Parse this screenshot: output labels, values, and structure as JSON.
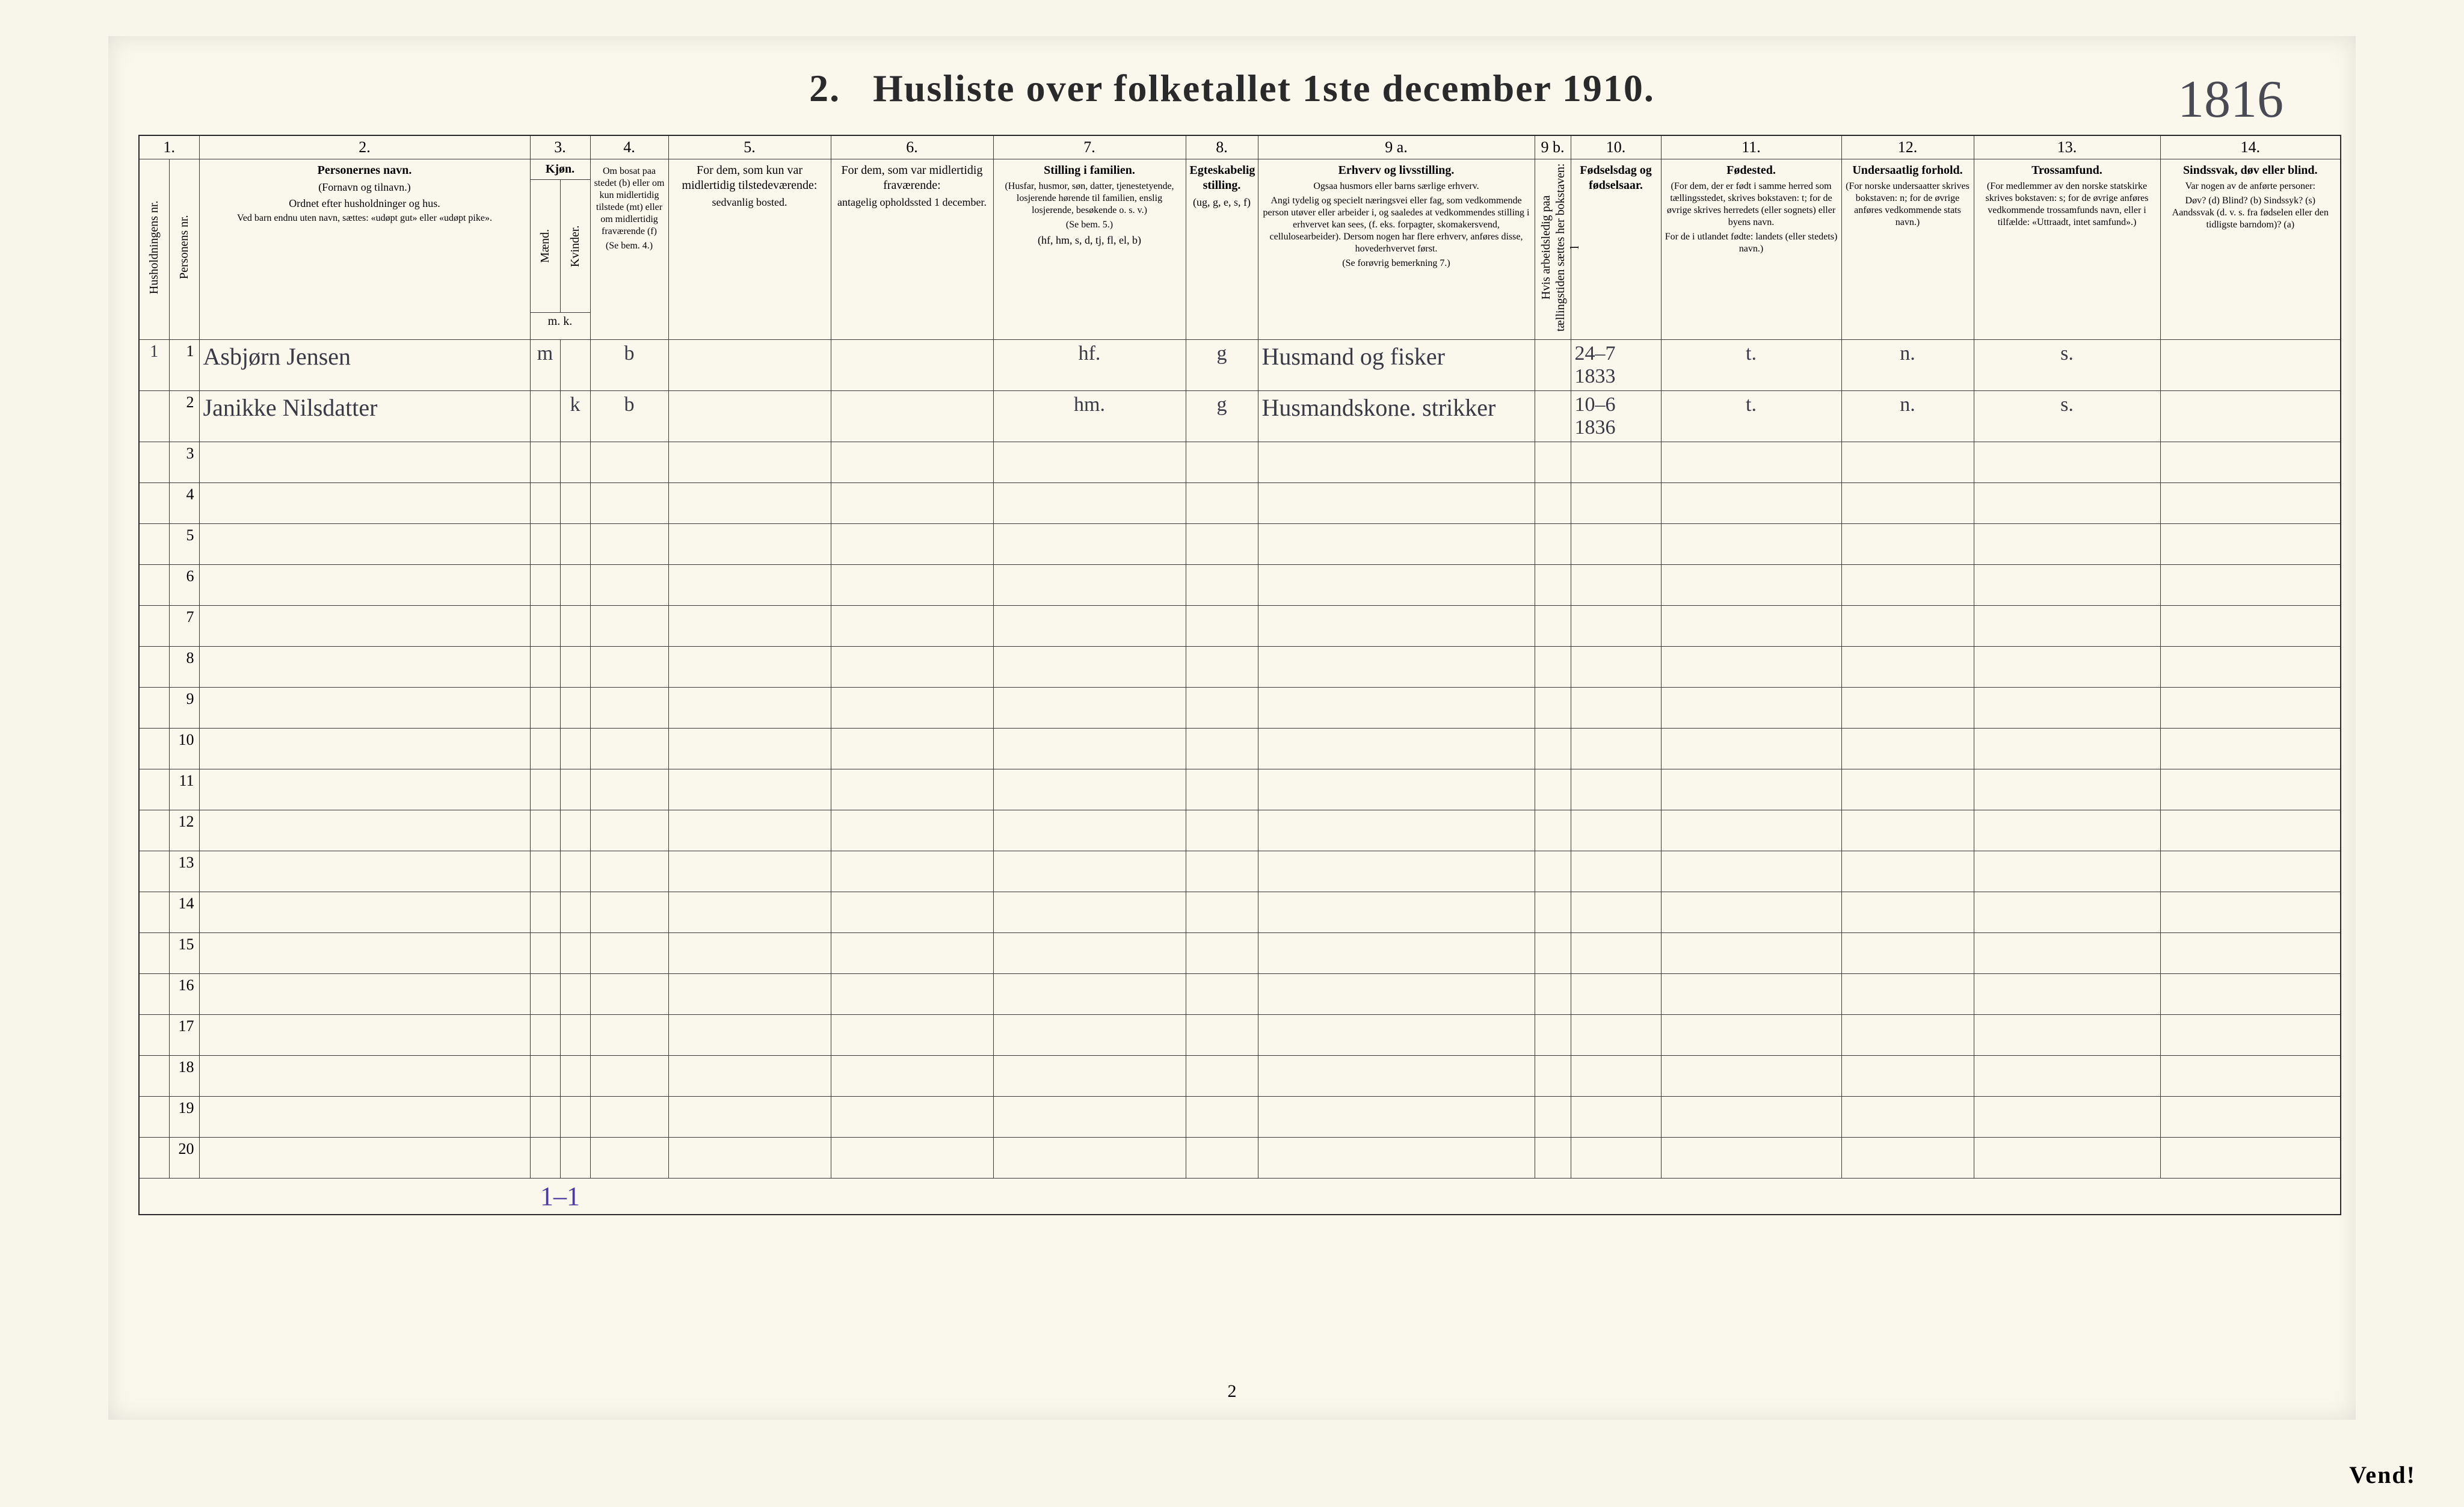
{
  "page": {
    "title_prefix": "2.",
    "title": "Husliste over folketallet 1ste december 1910.",
    "doc_number": "1816",
    "foot_page_number": "2",
    "vend": "Vend!",
    "tally": "1–1"
  },
  "colnums": {
    "c1": "1.",
    "c2": "2.",
    "c3": "3.",
    "c4": "4.",
    "c5": "5.",
    "c6": "6.",
    "c7": "7.",
    "c8": "8.",
    "c9a": "9 a.",
    "c9b": "9 b.",
    "c10": "10.",
    "c11": "11.",
    "c12": "12.",
    "c13": "13.",
    "c14": "14."
  },
  "headers": {
    "c1a": "Husholdningens nr.",
    "c1b": "Personens nr.",
    "c2_main": "Personernes navn.",
    "c2_sub1": "(Fornavn og tilnavn.)",
    "c2_sub2": "Ordnet efter husholdninger og hus.",
    "c2_sub3": "Ved barn endnu uten navn, sættes: «udøpt gut» eller «udøpt pike».",
    "c3_main": "Kjøn.",
    "c3_m": "Mænd.",
    "c3_k": "Kvinder.",
    "c3_mk": "m.  k.",
    "c4_main": "Om bosat paa stedet (b) eller om kun midlertidig tilstede (mt) eller om midlertidig fraværende (f)",
    "c4_sub": "(Se bem. 4.)",
    "c5_main": "For dem, som kun var midlertidig tilstedeværende:",
    "c5_sub": "sedvanlig bosted.",
    "c6_main": "For dem, som var midlertidig fraværende:",
    "c6_sub": "antagelig opholdssted 1 december.",
    "c7_main": "Stilling i familien.",
    "c7_sub1": "(Husfar, husmor, søn, datter, tjenestetyende, losjerende hørende til familien, enslig losjerende, besøkende o. s. v.)",
    "c7_sub2": "(hf, hm, s, d, tj, fl, el, b)",
    "c7_ref": "(Se bem. 5.)",
    "c8_main": "Egteskabelig stilling.",
    "c8_sub": "(ug, g, e, s, f)",
    "c9a_main": "Erhverv og livsstilling.",
    "c9a_sub1": "Ogsaa husmors eller barns særlige erhverv.",
    "c9a_sub2": "Angi tydelig og specielt næringsvei eller fag, som vedkommende person utøver eller arbeider i, og saaledes at vedkommendes stilling i erhvervet kan sees, (f. eks. forpagter, skomakersvend, cellulosearbeider). Dersom nogen har flere erhverv, anføres disse, hovederhvervet først.",
    "c9a_sub3": "(Se forøvrig bemerkning 7.)",
    "c9b_main": "Hvis arbeidsledig paa tællingstiden sættes her bokstaven: l",
    "c10_main": "Fødselsdag og fødselsaar.",
    "c11_main": "Fødested.",
    "c11_sub1": "(For dem, der er født i samme herred som tællingsstedet, skrives bokstaven: t; for de øvrige skrives herredets (eller sognets) eller byens navn.",
    "c11_sub2": "For de i utlandet fødte: landets (eller stedets) navn.)",
    "c12_main": "Undersaatlig forhold.",
    "c12_sub": "(For norske undersaatter skrives bokstaven: n; for de øvrige anføres vedkommende stats navn.)",
    "c13_main": "Trossamfund.",
    "c13_sub": "(For medlemmer av den norske statskirke skrives bokstaven: s; for de øvrige anføres vedkommende trossamfunds navn, eller i tilfælde: «Uttraadt, intet samfund».)",
    "c14_main": "Sindssvak, døv eller blind.",
    "c14_sub1": "Var nogen av de anførte personer:",
    "c14_sub2": "Døv? (d)  Blind? (b)  Sindssyk? (s)  Aandssvak (d. v. s. fra fødselen eller den tidligste barndom)? (a)"
  },
  "rows": [
    {
      "hh": "1",
      "pn": "1",
      "name": "Asbjørn Jensen",
      "sex_m": "m",
      "sex_k": "",
      "status": "b",
      "famrel": "hf.",
      "marital": "g",
      "occupation": "Husmand og fisker",
      "birth": "24–7 1833",
      "birthplace": "t.",
      "nationality": "n.",
      "religion": "s."
    },
    {
      "hh": "",
      "pn": "2",
      "name": "Janikke Nilsdatter",
      "sex_m": "",
      "sex_k": "k",
      "status": "b",
      "famrel": "hm.",
      "marital": "g",
      "occupation": "Husmandskone. strikker",
      "birth": "10–6 1836",
      "birthplace": "t.",
      "nationality": "n.",
      "religion": "s."
    }
  ],
  "colwidths": {
    "c1a": 50,
    "c1b": 50,
    "c2": 550,
    "c3m": 50,
    "c3k": 50,
    "c4": 130,
    "c5": 270,
    "c6": 270,
    "c7": 320,
    "c8": 120,
    "c9a": 460,
    "c9b": 60,
    "c10": 150,
    "c11": 300,
    "c12": 220,
    "c13": 310,
    "c14": 300
  },
  "style": {
    "background": "#f8f5ea",
    "ink": "#2a2a2a",
    "handwriting_color": "#3a3a45"
  }
}
